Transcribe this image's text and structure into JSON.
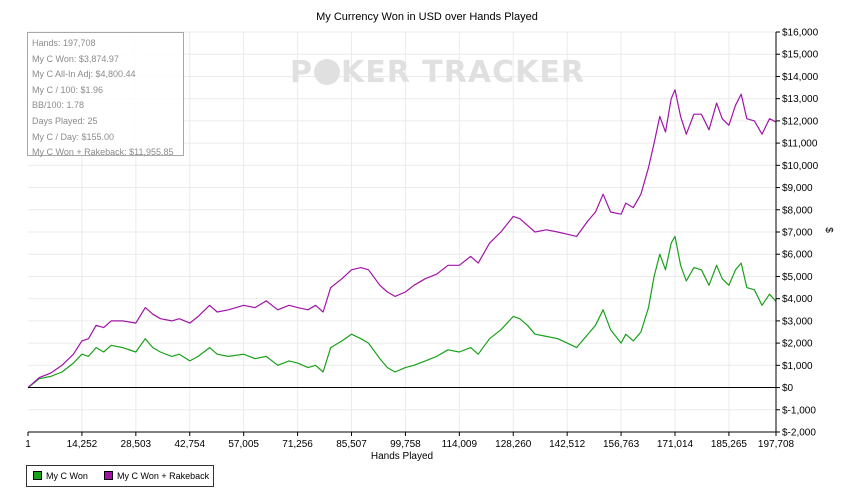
{
  "chart_data": {
    "type": "line",
    "title": "My Currency Won in USD over Hands Played",
    "xlabel": "Hands Played",
    "ylabel": "$",
    "xlim": [
      1,
      197708
    ],
    "ylim": [
      -2000,
      16000
    ],
    "x_ticks": [
      "1",
      "14,252",
      "28,503",
      "42,754",
      "57,005",
      "71,256",
      "85,507",
      "99,758",
      "114,009",
      "128,260",
      "142,512",
      "156,763",
      "171,014",
      "185,265",
      "197,708"
    ],
    "y_ticks": [
      "$16,000",
      "$15,000",
      "$14,000",
      "$13,000",
      "$12,000",
      "$11,000",
      "$10,000",
      "$9,000",
      "$8,000",
      "$7,000",
      "$6,000",
      "$5,000",
      "$4,000",
      "$3,000",
      "$2,000",
      "$1,000",
      "$0",
      "$-1,000",
      "$-2,000"
    ],
    "grid": true,
    "legend_position": "bottom-left",
    "series": [
      {
        "name": "My C Won",
        "color": "#1aa11a",
        "points": [
          [
            1,
            0
          ],
          [
            3000,
            400
          ],
          [
            6000,
            500
          ],
          [
            9000,
            700
          ],
          [
            12000,
            1100
          ],
          [
            14252,
            1500
          ],
          [
            16000,
            1400
          ],
          [
            18000,
            1800
          ],
          [
            20000,
            1600
          ],
          [
            22000,
            1900
          ],
          [
            25000,
            1800
          ],
          [
            28503,
            1600
          ],
          [
            31000,
            2200
          ],
          [
            33000,
            1800
          ],
          [
            35000,
            1600
          ],
          [
            38000,
            1400
          ],
          [
            40000,
            1500
          ],
          [
            42754,
            1200
          ],
          [
            45000,
            1400
          ],
          [
            48000,
            1800
          ],
          [
            50000,
            1500
          ],
          [
            53000,
            1400
          ],
          [
            57005,
            1500
          ],
          [
            60000,
            1300
          ],
          [
            63000,
            1400
          ],
          [
            66000,
            1000
          ],
          [
            69000,
            1200
          ],
          [
            71256,
            1100
          ],
          [
            74000,
            900
          ],
          [
            76000,
            1000
          ],
          [
            78000,
            700
          ],
          [
            80000,
            1800
          ],
          [
            83000,
            2100
          ],
          [
            85507,
            2400
          ],
          [
            88000,
            2200
          ],
          [
            90000,
            2000
          ],
          [
            93000,
            1300
          ],
          [
            95000,
            900
          ],
          [
            97000,
            700
          ],
          [
            99758,
            900
          ],
          [
            102000,
            1000
          ],
          [
            105000,
            1200
          ],
          [
            108000,
            1400
          ],
          [
            111000,
            1700
          ],
          [
            114009,
            1600
          ],
          [
            117000,
            1800
          ],
          [
            119000,
            1500
          ],
          [
            122000,
            2200
          ],
          [
            125000,
            2600
          ],
          [
            128260,
            3200
          ],
          [
            130000,
            3100
          ],
          [
            132000,
            2800
          ],
          [
            134000,
            2400
          ],
          [
            137000,
            2300
          ],
          [
            140000,
            2200
          ],
          [
            142512,
            2000
          ],
          [
            145000,
            1800
          ],
          [
            148000,
            2400
          ],
          [
            150000,
            2800
          ],
          [
            152000,
            3500
          ],
          [
            154000,
            2600
          ],
          [
            156763,
            2000
          ],
          [
            158000,
            2400
          ],
          [
            160000,
            2100
          ],
          [
            162000,
            2500
          ],
          [
            164000,
            3600
          ],
          [
            165500,
            5000
          ],
          [
            167000,
            6000
          ],
          [
            168500,
            5300
          ],
          [
            170000,
            6500
          ],
          [
            171014,
            6800
          ],
          [
            172500,
            5500
          ],
          [
            174000,
            4800
          ],
          [
            176000,
            5400
          ],
          [
            178000,
            5300
          ],
          [
            180000,
            4600
          ],
          [
            182000,
            5500
          ],
          [
            183500,
            4900
          ],
          [
            185265,
            4600
          ],
          [
            187000,
            5300
          ],
          [
            188500,
            5600
          ],
          [
            190000,
            4500
          ],
          [
            192000,
            4400
          ],
          [
            194000,
            3700
          ],
          [
            196000,
            4200
          ],
          [
            197708,
            3875
          ]
        ]
      },
      {
        "name": "My C Won + Rakeback",
        "color": "#a014a8",
        "points": [
          [
            1,
            0
          ],
          [
            3000,
            450
          ],
          [
            6000,
            650
          ],
          [
            9000,
            1000
          ],
          [
            12000,
            1500
          ],
          [
            14252,
            2100
          ],
          [
            16000,
            2200
          ],
          [
            18000,
            2800
          ],
          [
            20000,
            2700
          ],
          [
            22000,
            3000
          ],
          [
            25000,
            3000
          ],
          [
            28503,
            2900
          ],
          [
            31000,
            3600
          ],
          [
            33000,
            3300
          ],
          [
            35000,
            3100
          ],
          [
            38000,
            3000
          ],
          [
            40000,
            3100
          ],
          [
            42754,
            2900
          ],
          [
            45000,
            3200
          ],
          [
            48000,
            3700
          ],
          [
            50000,
            3400
          ],
          [
            53000,
            3500
          ],
          [
            57005,
            3700
          ],
          [
            60000,
            3600
          ],
          [
            63000,
            3900
          ],
          [
            66000,
            3500
          ],
          [
            69000,
            3700
          ],
          [
            71256,
            3600
          ],
          [
            74000,
            3500
          ],
          [
            76000,
            3700
          ],
          [
            78000,
            3400
          ],
          [
            80000,
            4500
          ],
          [
            83000,
            4900
          ],
          [
            85507,
            5300
          ],
          [
            88000,
            5400
          ],
          [
            90000,
            5300
          ],
          [
            93000,
            4600
          ],
          [
            95000,
            4300
          ],
          [
            97000,
            4100
          ],
          [
            99758,
            4300
          ],
          [
            102000,
            4600
          ],
          [
            105000,
            4900
          ],
          [
            108000,
            5100
          ],
          [
            111000,
            5500
          ],
          [
            114009,
            5500
          ],
          [
            117000,
            5900
          ],
          [
            119000,
            5600
          ],
          [
            122000,
            6500
          ],
          [
            125000,
            7000
          ],
          [
            128260,
            7700
          ],
          [
            130000,
            7600
          ],
          [
            132000,
            7300
          ],
          [
            134000,
            7000
          ],
          [
            137000,
            7100
          ],
          [
            140000,
            7000
          ],
          [
            142512,
            6900
          ],
          [
            145000,
            6800
          ],
          [
            148000,
            7500
          ],
          [
            150000,
            7900
          ],
          [
            152000,
            8700
          ],
          [
            154000,
            7900
          ],
          [
            156763,
            7800
          ],
          [
            158000,
            8300
          ],
          [
            160000,
            8100
          ],
          [
            162000,
            8700
          ],
          [
            164000,
            9900
          ],
          [
            165500,
            11000
          ],
          [
            167000,
            12200
          ],
          [
            168500,
            11500
          ],
          [
            170000,
            13000
          ],
          [
            171014,
            13400
          ],
          [
            172500,
            12200
          ],
          [
            174000,
            11400
          ],
          [
            176000,
            12300
          ],
          [
            178000,
            12300
          ],
          [
            180000,
            11600
          ],
          [
            182000,
            12800
          ],
          [
            183500,
            12100
          ],
          [
            185265,
            11800
          ],
          [
            187000,
            12700
          ],
          [
            188500,
            13200
          ],
          [
            190000,
            12100
          ],
          [
            192000,
            12000
          ],
          [
            194000,
            11400
          ],
          [
            196000,
            12100
          ],
          [
            197708,
            11956
          ]
        ]
      }
    ]
  },
  "stats": [
    "Hands: 197,708",
    "My C Won: $3,874.97",
    "My C All-In Adj: $4,800.44",
    "My C / 100: $1.96",
    "BB/100: 1.78",
    "Days Played: 25",
    "My C / Day: $155.00",
    "My C Won + Rakeback: $11,955.85"
  ],
  "watermark": {
    "before": "P",
    "after": "KER TRACKER"
  }
}
